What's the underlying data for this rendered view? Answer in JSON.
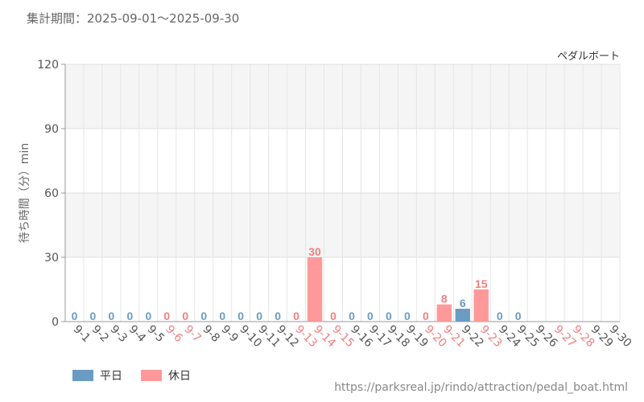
{
  "period_label": "集計期間：2025-09-01～2025-09-30",
  "source_url": "https://parksreal.jp/rindo/attraction/pedal_boat.html",
  "legend": {
    "weekday_label": "平日",
    "holiday_label": "休日"
  },
  "colors": {
    "weekday": "#6a9cc3",
    "holiday": "#ff9999",
    "holiday_text": "#f08080",
    "axis_text": "#555555"
  },
  "chart_data": {
    "type": "bar",
    "title": "ペダルボート",
    "ylabel": "待ち時間（分）min",
    "xlabel": "",
    "ylim": [
      0,
      120
    ],
    "yticks": [
      0,
      30,
      60,
      90,
      120
    ],
    "categories": [
      "9-1",
      "9-2",
      "9-3",
      "9-4",
      "9-5",
      "9-6",
      "9-7",
      "9-8",
      "9-9",
      "9-10",
      "9-11",
      "9-12",
      "9-13",
      "9-14",
      "9-15",
      "9-16",
      "9-17",
      "9-18",
      "9-19",
      "9-20",
      "9-21",
      "9-22",
      "9-23",
      "9-24",
      "9-25",
      "9-26",
      "9-27",
      "9-28",
      "9-29",
      "9-30"
    ],
    "values": [
      0,
      0,
      0,
      0,
      0,
      0,
      0,
      0,
      0,
      0,
      0,
      0,
      0,
      30,
      0,
      0,
      0,
      0,
      0,
      0,
      8,
      6,
      15,
      0,
      0,
      null,
      null,
      null,
      null,
      null
    ],
    "day_type": [
      "weekday",
      "weekday",
      "weekday",
      "weekday",
      "weekday",
      "holiday",
      "holiday",
      "weekday",
      "weekday",
      "weekday",
      "weekday",
      "weekday",
      "holiday",
      "holiday",
      "holiday",
      "weekday",
      "weekday",
      "weekday",
      "weekday",
      "holiday",
      "holiday",
      "weekday",
      "holiday",
      "weekday",
      "weekday",
      "weekday",
      "holiday",
      "holiday",
      "weekday",
      "weekday"
    ],
    "grid": true,
    "legend_position": "bottom-left"
  }
}
